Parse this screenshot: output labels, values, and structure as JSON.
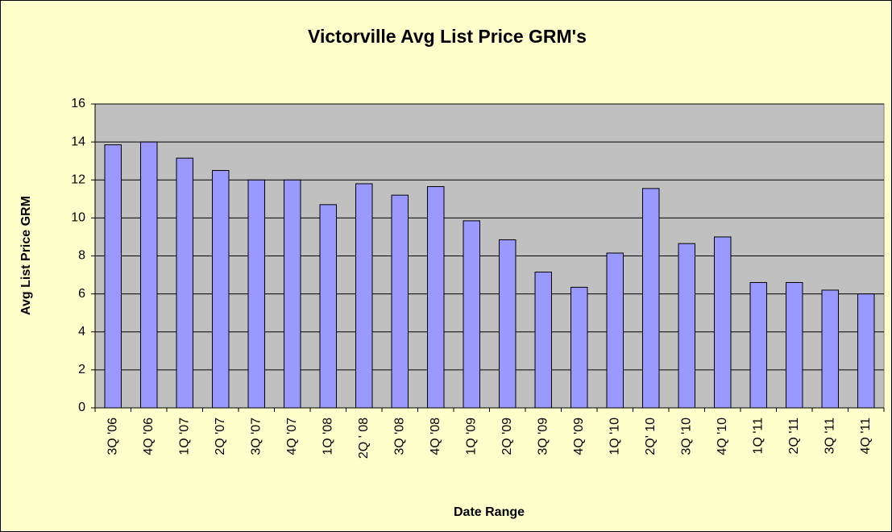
{
  "chart_data": {
    "type": "bar",
    "title": "Victorville Avg List Price GRM's",
    "x_label": "Date Range",
    "y_label": "Avg List Price GRM",
    "categories": [
      "3Q '06",
      "4Q '06",
      "1Q '07",
      "2Q '07",
      "3Q '07",
      "4Q '07",
      "1Q '08",
      "2Q ' 08",
      "3Q '08",
      "4Q '08",
      "1Q '09",
      "2Q '09",
      "3Q '09",
      "4Q '09",
      "1Q '10",
      "2Q' 10",
      "3Q '10",
      "4Q '10",
      "1Q '11",
      "2Q '11",
      "3Q '11",
      "4Q '11"
    ],
    "values": [
      13.85,
      14.0,
      13.15,
      12.5,
      12.0,
      12.0,
      10.7,
      11.8,
      11.2,
      11.65,
      9.85,
      8.85,
      7.15,
      6.35,
      8.15,
      11.55,
      8.65,
      9.0,
      6.6,
      6.6,
      6.2,
      6.0
    ],
    "color": "#9999ff",
    "background": "#ffffcc",
    "plot_background": "#c0c0c0",
    "ylim": [
      0,
      16
    ],
    "yticks": [
      0,
      2,
      4,
      6,
      8,
      10,
      12,
      14,
      16
    ],
    "grid": true
  }
}
